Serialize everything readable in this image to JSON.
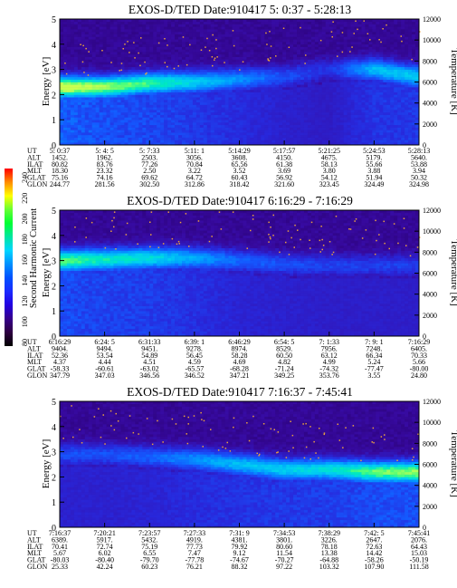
{
  "colorbar": {
    "label": "Second Harmonic Current",
    "ticks": [
      "240",
      "220",
      "200",
      "180",
      "160",
      "140",
      "120",
      "100",
      "80"
    ],
    "colors": [
      "#ff0000",
      "#ff8c00",
      "#ffff00",
      "#66ff33",
      "#00ff33",
      "#00e6a0",
      "#00d6ff",
      "#0090ff",
      "#0050ff",
      "#1a2aff",
      "#2200e0",
      "#35008a",
      "#2d0040",
      "#000000"
    ]
  },
  "row_labels": [
    "UT",
    "ALT",
    "ILAT",
    "MLT",
    "GLAT",
    "GLON"
  ],
  "chart_data": [
    {
      "type": "heatmap",
      "title": "EXOS-D/TED   Date:910417  5: 0:37 - 5:28:13",
      "ylabel": "Energy [eV]",
      "y2label": "Temperature [K]",
      "ylim": [
        0,
        5
      ],
      "y2lim": [
        0,
        12000
      ],
      "yticks": [
        "0",
        "1",
        "2",
        "3",
        "4",
        "5"
      ],
      "y2ticks": [
        "0",
        "2000",
        "4000",
        "6000",
        "8000",
        "10000",
        "12000"
      ],
      "columns": [
        [
          "5: 0:37",
          "1452.",
          "80.82",
          "18.30",
          "75.16",
          "244.77"
        ],
        [
          "5: 4: 5",
          "1962.",
          "83.76",
          "23.32",
          "74.16",
          "281.56"
        ],
        [
          "5: 7:33",
          "2503.",
          "77.26",
          "2.50",
          "69.62",
          "302.50"
        ],
        [
          "5:11: 1",
          "3056.",
          "70.84",
          "3.22",
          "64.72",
          "312.86"
        ],
        [
          "5:14:29",
          "3608.",
          "65.56",
          "3.52",
          "60.43",
          "318.42"
        ],
        [
          "5:17:57",
          "4150.",
          "61.38",
          "3.69",
          "56.92",
          "321.60"
        ],
        [
          "5:21:25",
          "4675.",
          "58.13",
          "3.80",
          "54.12",
          "323.45"
        ],
        [
          "5:24:53",
          "5179.",
          "55.66",
          "3.88",
          "51.94",
          "324.49"
        ],
        [
          "5:28:13",
          "5640.",
          "53.88",
          "3.94",
          "50.32",
          "324.98"
        ]
      ],
      "features": {
        "band_center_ev": [
          2.3,
          2.3,
          2.45,
          2.5,
          2.6,
          2.7,
          3.0,
          3.0,
          2.7
        ],
        "band_intensity": [
          0.95,
          0.85,
          0.75,
          0.6,
          0.45,
          0.3,
          0.2,
          0.55,
          0.6
        ]
      }
    },
    {
      "type": "heatmap",
      "title": "EXOS-D/TED   Date:910417  6:16:29 - 7:16:29",
      "ylabel": "Energy [eV]",
      "y2label": "Temperature [K]",
      "ylim": [
        0,
        5
      ],
      "y2lim": [
        0,
        12000
      ],
      "yticks": [
        "0",
        "1",
        "2",
        "3",
        "4",
        "5"
      ],
      "y2ticks": [
        "0",
        "2000",
        "4000",
        "6000",
        "8000",
        "10000",
        "12000"
      ],
      "columns": [
        [
          "6:16:29",
          "9404.",
          "52.36",
          "4.37",
          "-58.33",
          "347.79"
        ],
        [
          "6:24: 5",
          "9494.",
          "53.54",
          "4.44",
          "-60.61",
          "347.03"
        ],
        [
          "6:31:33",
          "9451.",
          "54.89",
          "4.51",
          "-63.02",
          "346.56"
        ],
        [
          "6:39: 1",
          "9278.",
          "56.45",
          "4.59",
          "-65.57",
          "346.52"
        ],
        [
          "6:46:29",
          "8974.",
          "58.28",
          "4.69",
          "-68.28",
          "347.21"
        ],
        [
          "6:54: 5",
          "8529.",
          "60.50",
          "4.82",
          "-71.24",
          "349.25"
        ],
        [
          "7: 1:33",
          "7956.",
          "63.12",
          "4.99",
          "-74.32",
          "353.76"
        ],
        [
          "7: 9: 1",
          "7248.",
          "66.34",
          "5.24",
          "-77.47",
          "3.55"
        ],
        [
          "7:16:29",
          "6405.",
          "70.33",
          "5.66",
          "-80.00",
          "24.80"
        ]
      ],
      "features": {
        "band_center_ev": [
          3.0,
          3.05,
          3.1,
          3.1,
          3.0,
          2.85,
          2.8,
          2.8,
          2.8
        ],
        "band_intensity": [
          0.8,
          0.7,
          0.65,
          0.5,
          0.35,
          0.3,
          0.25,
          0.25,
          0.25
        ]
      }
    },
    {
      "type": "heatmap",
      "title": "EXOS-D/TED   Date:910417  7:16:37 - 7:45:41",
      "ylabel": "Energy [eV]",
      "y2label": "Temperature [K]",
      "ylim": [
        0,
        5
      ],
      "y2lim": [
        0,
        12000
      ],
      "yticks": [
        "0",
        "1",
        "2",
        "3",
        "4",
        "5"
      ],
      "y2ticks": [
        "0",
        "2000",
        "4000",
        "6000",
        "8000",
        "10000",
        "12000"
      ],
      "columns": [
        [
          "7:16:37",
          "6389.",
          "70.41",
          "5.67",
          "-80.03",
          "25.33"
        ],
        [
          "7:20:21",
          "5917.",
          "72.74",
          "6.02",
          "-80.40",
          "42.24"
        ],
        [
          "7:23:57",
          "5432.",
          "75.19",
          "6.55",
          "-79.70",
          "60.23"
        ],
        [
          "7:27:33",
          "4919.",
          "77.73",
          "7.47",
          "-77.78",
          "76.21"
        ],
        [
          "7:31: 9",
          "4381.",
          "79.92",
          "9.12",
          "-74.67",
          "88.32"
        ],
        [
          "7:34:53",
          "3801.",
          "80.60",
          "11.54",
          "-70.27",
          "97.22"
        ],
        [
          "7:38:29",
          "3226.",
          "78.18",
          "13.38",
          "-64.88",
          "103.32"
        ],
        [
          "7:42: 5",
          "2647.",
          "72.63",
          "14.42",
          "-58.26",
          "107.90"
        ],
        [
          "7:45:41",
          "2076.",
          "64.43",
          "15.03",
          "-50.19",
          "111.58"
        ]
      ],
      "features": {
        "band_center_ev": [
          2.9,
          2.9,
          2.8,
          2.7,
          2.5,
          2.3,
          2.3,
          2.2,
          2.2
        ],
        "band_intensity": [
          0.3,
          0.3,
          0.35,
          0.45,
          0.55,
          0.6,
          0.65,
          0.8,
          0.85
        ]
      }
    }
  ]
}
